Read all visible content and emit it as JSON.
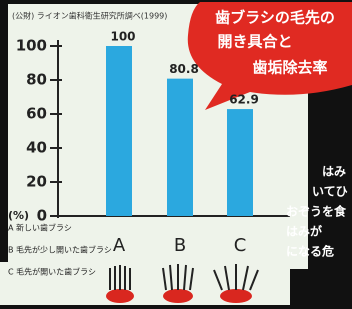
{
  "chart_data": {
    "type": "bar",
    "source": "(公財) ライオン歯科衛生研究所調べ(1999)",
    "title": [
      "歯ブラシの毛先の",
      "開き具合と",
      "歯垢除去率"
    ],
    "ylabel": "(%)",
    "categories": [
      "A",
      "B",
      "C"
    ],
    "values": [
      100,
      80.8,
      62.9
    ],
    "color": "#2ba8df",
    "ylim": [
      0,
      100
    ],
    "yticks": [
      0,
      20,
      40,
      60,
      80,
      100
    ],
    "legend_texts": [
      "A 新しい歯ブラシ",
      "B 毛先が少し開いた歯ブラシ",
      "C 毛先が開いた歯ブラシ"
    ],
    "side_text": [
      "はみ",
      "いてひ",
      "おぞうを食",
      "はみが",
      "になる危"
    ]
  }
}
